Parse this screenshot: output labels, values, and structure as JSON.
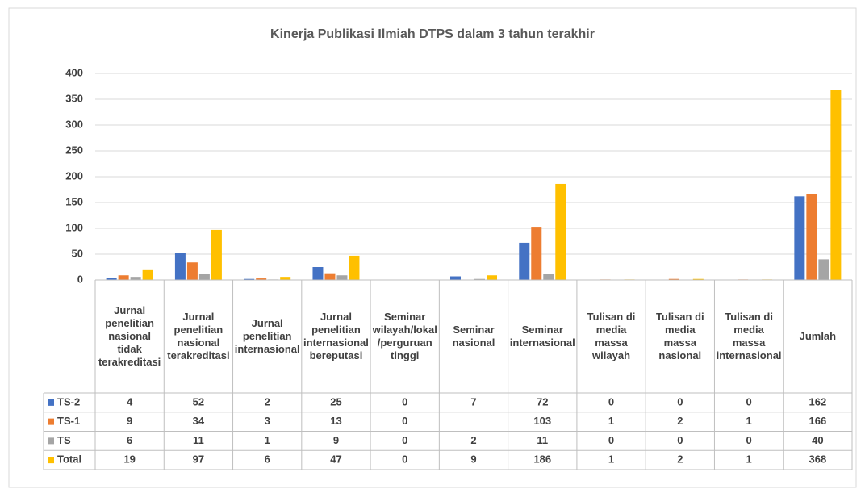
{
  "chart_data": {
    "type": "bar",
    "title": "Kinerja Publikasi Ilmiah DTPS dalam 3 tahun terakhir",
    "categories": [
      "Jurnal penelitian nasional tidak terakreditasi",
      "Jurnal penelitian nasional terakreditasi",
      "Jurnal penelitian internasional",
      "Jurnal penelitian internasional bereputasi",
      "Seminar wilayah/lokal/perguruan tinggi",
      "Seminar nasional",
      "Seminar internasional",
      "Tulisan di media massa wilayah",
      "Tulisan di media massa nasional",
      "Tulisan di media massa internasional",
      "Jumlah"
    ],
    "series": [
      {
        "name": "TS-2",
        "color": "#4472c4",
        "values": [
          4,
          52,
          2,
          25,
          0,
          7,
          72,
          0,
          0,
          0,
          162
        ]
      },
      {
        "name": "TS-1",
        "color": "#ed7d31",
        "values": [
          9,
          34,
          3,
          13,
          0,
          null,
          103,
          1,
          2,
          1,
          166
        ]
      },
      {
        "name": "TS",
        "color": "#a5a5a5",
        "values": [
          6,
          11,
          1,
          9,
          0,
          2,
          11,
          0,
          0,
          0,
          40
        ]
      },
      {
        "name": "Total",
        "color": "#ffc000",
        "values": [
          19,
          97,
          6,
          47,
          0,
          9,
          186,
          1,
          2,
          1,
          368
        ]
      }
    ],
    "ylim": [
      0,
      400
    ],
    "yticks": [
      0,
      50,
      100,
      150,
      200,
      250,
      300,
      350,
      400
    ],
    "grid": true,
    "data_table": true
  }
}
